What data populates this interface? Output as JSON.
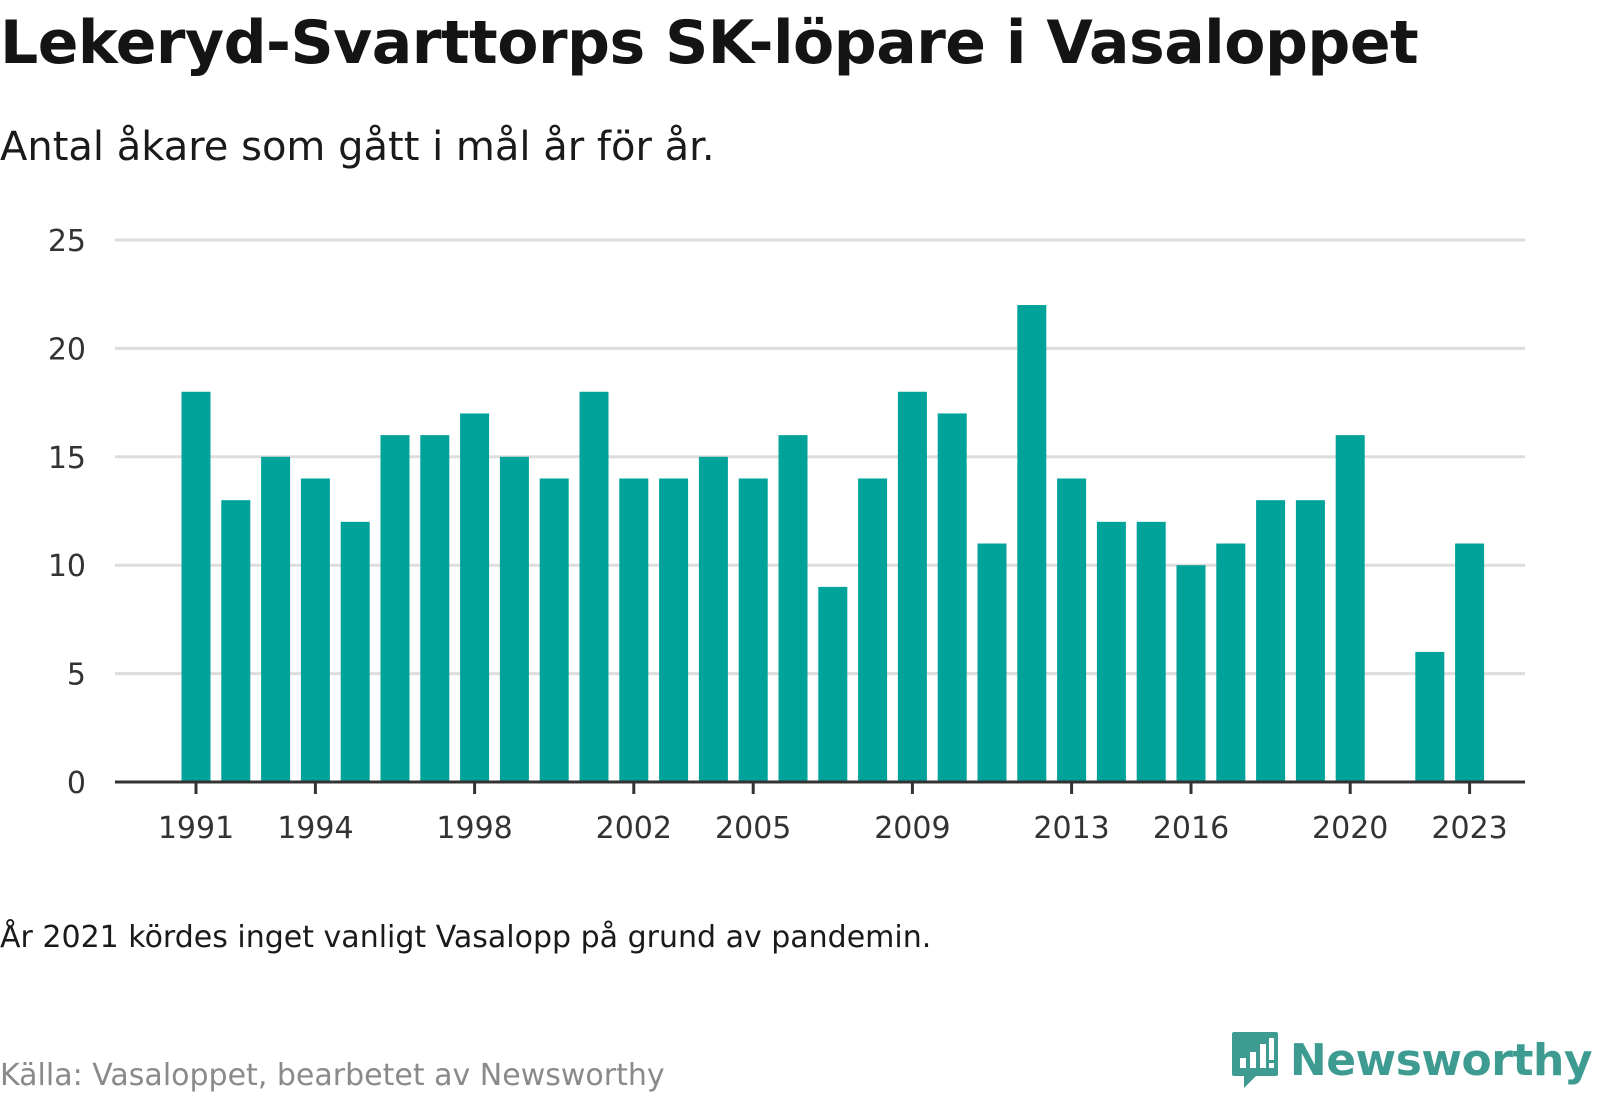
{
  "title": "Lekeryd-Svarttorps SK-löpare i Vasaloppet",
  "subtitle": "Antal åkare som gått i mål år för år.",
  "note": "År 2021 kördes inget vanligt Vasalopp på grund av pandemin.",
  "source": "Källa: Vasaloppet, bearbetet av Newsworthy",
  "brand": {
    "name": "Newsworthy",
    "icon": "newsworthy-logo-icon",
    "color": "#3d9b91"
  },
  "colors": {
    "bar": "#00a39a",
    "grid": "#dddddd",
    "axis": "#333333"
  },
  "chart_data": {
    "type": "bar",
    "x": [
      1991,
      1992,
      1993,
      1994,
      1995,
      1996,
      1997,
      1998,
      1999,
      2000,
      2001,
      2002,
      2003,
      2004,
      2005,
      2006,
      2007,
      2008,
      2009,
      2010,
      2011,
      2012,
      2013,
      2014,
      2015,
      2016,
      2017,
      2018,
      2019,
      2020,
      2021,
      2022,
      2023
    ],
    "values": [
      18,
      13,
      15,
      14,
      12,
      16,
      16,
      17,
      15,
      14,
      18,
      14,
      14,
      15,
      14,
      16,
      9,
      14,
      18,
      17,
      11,
      22,
      14,
      12,
      12,
      10,
      11,
      13,
      13,
      16,
      null,
      6,
      11
    ],
    "x_tick_labels": [
      "1991",
      "1994",
      "1998",
      "2002",
      "2005",
      "2009",
      "2013",
      "2016",
      "2020",
      "2023"
    ],
    "y_ticks": [
      0,
      5,
      10,
      15,
      20,
      25
    ],
    "ylim": [
      0,
      25
    ],
    "grid": true,
    "legend": "none"
  }
}
